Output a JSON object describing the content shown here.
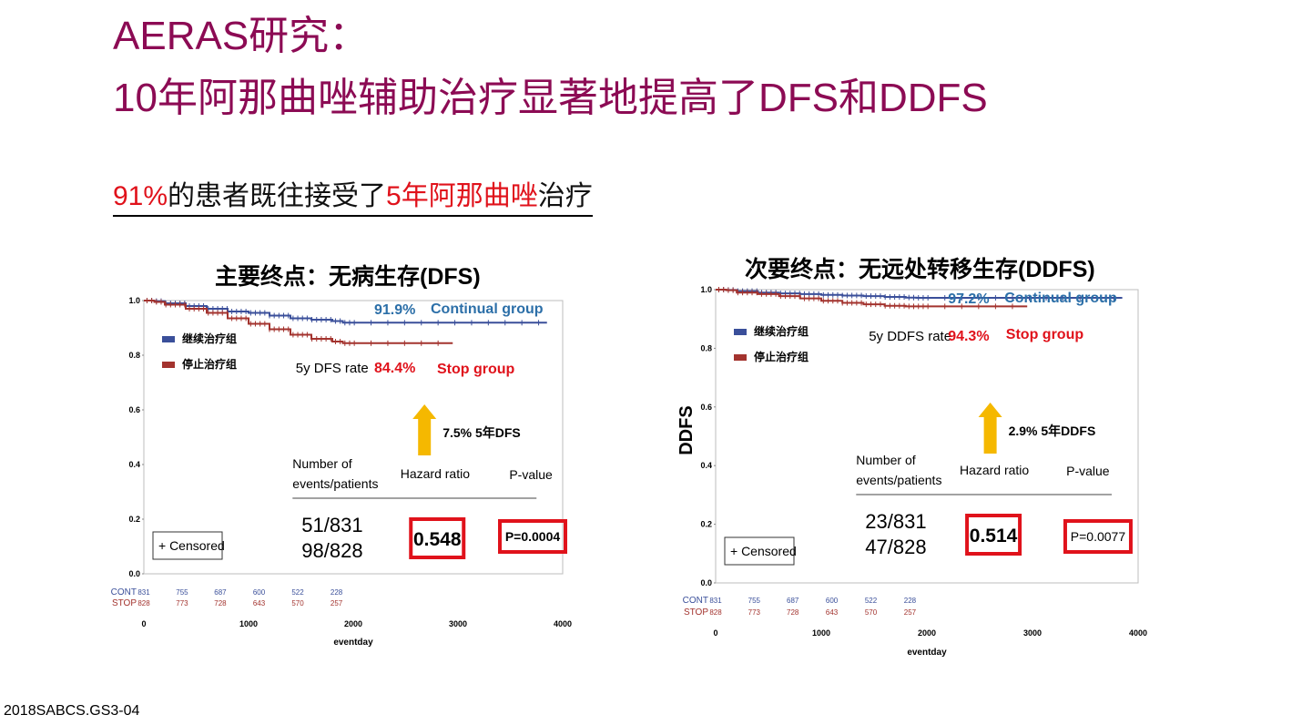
{
  "slide": {
    "title_line1": "AERAS研究：",
    "title_line2": "10年阿那曲唑辅助治疗显著地提高了DFS和DDFS",
    "subtitle": {
      "pct": "91%",
      "mid": "的患者既往接受了",
      "emph": "5年阿那曲唑",
      "end": "治疗"
    },
    "footer": "2018SABCS.GS3-04",
    "colors": {
      "title": "#8c0b54",
      "emphasis": "#e0121b",
      "continual": "#3a4f9a",
      "stop": "#a3332e",
      "arrow": "#f5b800",
      "box": "#e0121b"
    }
  },
  "chart_data": [
    {
      "type": "line",
      "panel_title": "主要终点：无病生存(DFS)",
      "xlabel": "eventday",
      "ylabel": "",
      "xlim": [
        0,
        4000
      ],
      "ylim": [
        0.0,
        1.0
      ],
      "xticks": [
        "0",
        "1000",
        "2000",
        "3000",
        "4000"
      ],
      "yticks": [
        "0.0",
        "0.2",
        "0.4",
        "0.6",
        "0.8",
        "1.0"
      ],
      "legend": [
        "继续治疗组",
        "停止治疗组"
      ],
      "series": [
        {
          "name": "继续治疗组",
          "color": "#3a4f9a",
          "x": [
            0,
            100,
            200,
            400,
            600,
            800,
            1000,
            1200,
            1400,
            1600,
            1800,
            1900,
            2000,
            2500,
            3000,
            3500,
            3850
          ],
          "y": [
            1.0,
            0.998,
            0.99,
            0.98,
            0.97,
            0.96,
            0.955,
            0.945,
            0.935,
            0.93,
            0.925,
            0.919,
            0.919,
            0.919,
            0.919,
            0.919,
            0.919
          ]
        },
        {
          "name": "停止治疗组",
          "color": "#a3332e",
          "x": [
            0,
            100,
            200,
            400,
            600,
            800,
            1000,
            1200,
            1400,
            1600,
            1800,
            1900,
            2000,
            2200,
            2500,
            2800,
            2950
          ],
          "y": [
            1.0,
            0.995,
            0.985,
            0.97,
            0.955,
            0.935,
            0.915,
            0.895,
            0.875,
            0.86,
            0.85,
            0.844,
            0.844,
            0.844,
            0.844,
            0.844,
            0.844
          ]
        }
      ],
      "annotations": {
        "cont_rate": "91.9%",
        "cont_label": "Continual group",
        "rate_label": "5y DFS rate",
        "stop_rate": "84.4%",
        "stop_label": "Stop group",
        "improve": "7.5% 5年DFS",
        "col_events": "Number of\nevents/patients",
        "col_hr": "Hazard ratio",
        "col_p": "P-value",
        "events_cont": "51/831",
        "events_stop": "98/828",
        "hr": "0.548",
        "p": "P=0.0004",
        "censored": "+ Censored"
      },
      "risk_table": {
        "cont_label": "CONT",
        "stop_label": "STOP",
        "cont": [
          "831",
          "755",
          "687",
          "600",
          "522",
          "228"
        ],
        "stop": [
          "828",
          "773",
          "728",
          "643",
          "570",
          "257"
        ]
      }
    },
    {
      "type": "line",
      "panel_title": "次要终点：无远处转移生存(DDFS)",
      "xlabel": "eventday",
      "ylabel": "DDFS",
      "xlim": [
        0,
        4000
      ],
      "ylim": [
        0.0,
        1.0
      ],
      "xticks": [
        "0",
        "1000",
        "2000",
        "3000",
        "4000"
      ],
      "yticks": [
        "0.0",
        "0.2",
        "0.4",
        "0.6",
        "0.8",
        "1.0"
      ],
      "legend": [
        "继续治疗组",
        "停止治疗组"
      ],
      "series": [
        {
          "name": "继续治疗组",
          "color": "#3a4f9a",
          "x": [
            0,
            100,
            200,
            400,
            600,
            800,
            1000,
            1200,
            1400,
            1600,
            1800,
            1900,
            2000,
            2500,
            3000,
            3500,
            3850
          ],
          "y": [
            1.0,
            0.999,
            0.995,
            0.99,
            0.987,
            0.985,
            0.982,
            0.98,
            0.978,
            0.975,
            0.973,
            0.972,
            0.972,
            0.972,
            0.972,
            0.972,
            0.972
          ]
        },
        {
          "name": "停止治疗组",
          "color": "#a3332e",
          "x": [
            0,
            100,
            200,
            400,
            600,
            800,
            1000,
            1200,
            1400,
            1600,
            1800,
            1900,
            2000,
            2200,
            2500,
            2800,
            2950
          ],
          "y": [
            1.0,
            0.998,
            0.99,
            0.985,
            0.978,
            0.97,
            0.962,
            0.955,
            0.95,
            0.945,
            0.943,
            0.943,
            0.943,
            0.943,
            0.943,
            0.943,
            0.943
          ]
        }
      ],
      "annotations": {
        "cont_rate": "97.2%",
        "cont_label": "Continual group",
        "rate_label": "5y DDFS rate",
        "stop_rate": "94.3%",
        "stop_label": "Stop group",
        "improve": "2.9% 5年DDFS",
        "col_events": "Number of\nevents/patients",
        "col_hr": "Hazard ratio",
        "col_p": "P-value",
        "events_cont": "23/831",
        "events_stop": "47/828",
        "hr": "0.514",
        "p": "P=0.0077",
        "censored": "+ Censored"
      },
      "risk_table": {
        "cont_label": "CONT",
        "stop_label": "STOP",
        "cont": [
          "831",
          "755",
          "687",
          "600",
          "522",
          "228"
        ],
        "stop": [
          "828",
          "773",
          "728",
          "643",
          "570",
          "257"
        ]
      }
    }
  ]
}
